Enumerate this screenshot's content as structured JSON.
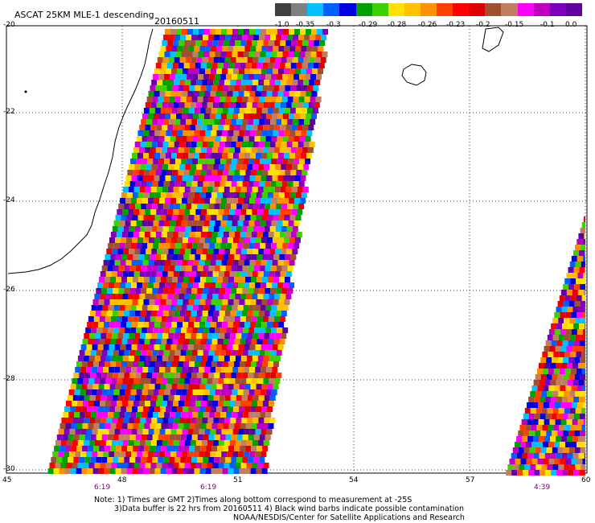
{
  "title": "ASCAT 25KM MLE-1 descending",
  "date_label": "20160511",
  "colorbar": {
    "colors": [
      "#404040",
      "#808080",
      "#00c0ff",
      "#0060ff",
      "#0000e0",
      "#00a000",
      "#40d000",
      "#ffe000",
      "#ffc000",
      "#ff9000",
      "#ff4000",
      "#ff0000",
      "#e00000",
      "#a05030",
      "#c08060",
      "#ff00ff",
      "#c000c0",
      "#8000c0",
      "#6000a0"
    ],
    "labels": [
      "-1.0",
      "-0.35",
      "-0.3",
      "-0.29",
      "-0.28",
      "-0.26",
      "-0.23",
      "-0.2",
      "-0.15",
      "-0.1",
      "0.0"
    ]
  },
  "axes": {
    "y_ticks": [
      "-20",
      "-22",
      "-24",
      "-26",
      "-28",
      "-30"
    ],
    "x_ticks": [
      "45",
      "48",
      "51",
      "54",
      "57",
      "60"
    ],
    "lat_range": [
      -30,
      -20
    ],
    "lon_range": [
      45,
      60
    ]
  },
  "pass_times": [
    "6:19",
    "6:19",
    "4:39"
  ],
  "notes": [
    "Note: 1) Times are GMT 2)Times along bottom correspond to measurement at -25S",
    "3)Data buffer is 22 hrs from 20160511 4) Black wind barbs indicate possible contamination",
    "NOAA/NESDIS/Center for Satellite Applications and Research"
  ]
}
